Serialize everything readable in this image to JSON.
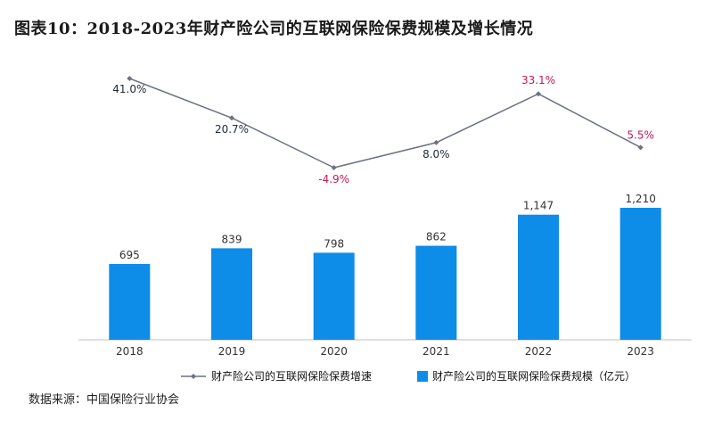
{
  "title": "图表10：2018-2023年财产险公司的互联网保险保费规模及增长情况",
  "source": "数据来源：中国保险行业协会",
  "colors": {
    "bar": "#0d8ce8",
    "line": "#6b7280",
    "label": "#1f2937",
    "highlight": "#c2185b"
  },
  "chart_data": {
    "type": "bar",
    "categories": [
      "2018",
      "2019",
      "2020",
      "2021",
      "2022",
      "2023"
    ],
    "series": [
      {
        "name": "财产险公司的互联网保险保费规模（亿元）",
        "type": "bar",
        "values": [
          695,
          839,
          798,
          862,
          1147,
          1210
        ],
        "labels": [
          "695",
          "839",
          "798",
          "862",
          "1,147",
          "1,210"
        ]
      },
      {
        "name": "财产险公司的互联网保险保费增速",
        "type": "line",
        "values": [
          41.0,
          20.7,
          -4.9,
          8.0,
          33.1,
          5.5
        ],
        "labels": [
          "41.0%",
          "20.7%",
          "-4.9%",
          "8.0%",
          "33.1%",
          "5.5%"
        ],
        "label_highlight": [
          false,
          false,
          true,
          false,
          true,
          true
        ]
      }
    ],
    "legend_position": "bottom",
    "grid": false
  }
}
